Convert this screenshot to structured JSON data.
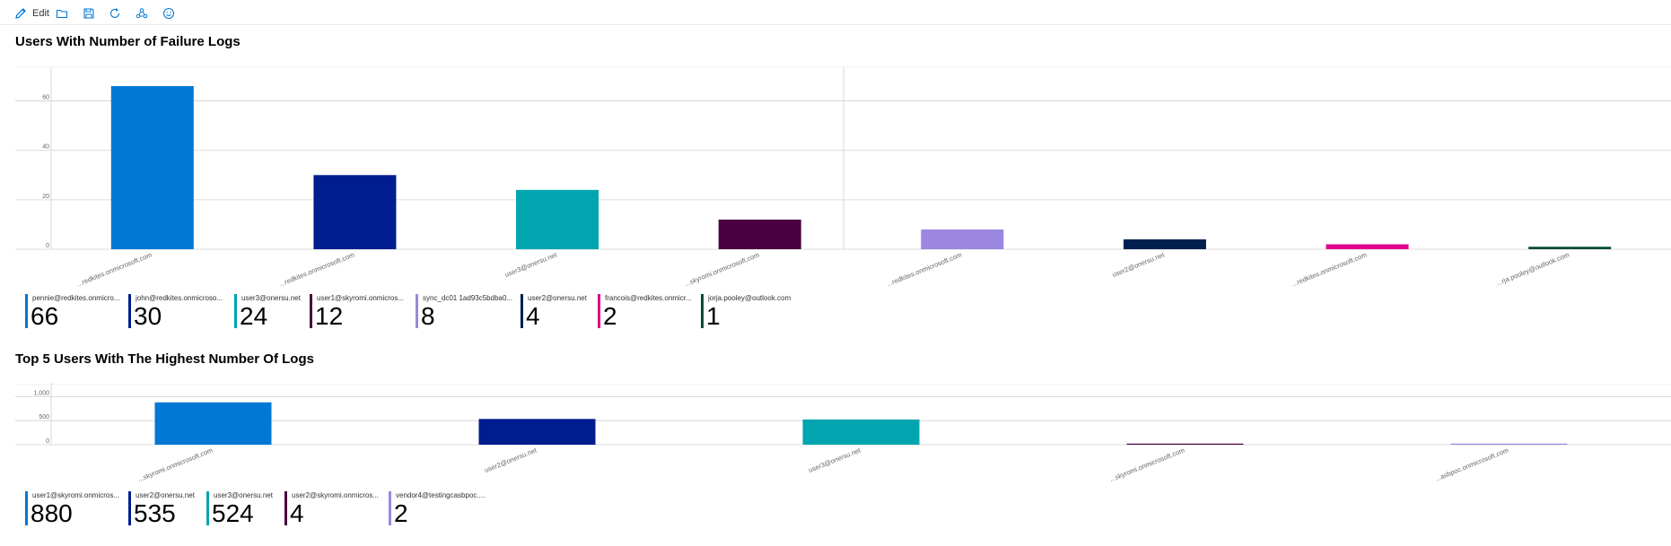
{
  "toolbar": {
    "edit_label": "Edit",
    "buttons": [
      {
        "icon": "pencil-icon",
        "label": "Edit"
      },
      {
        "icon": "folder-icon"
      },
      {
        "icon": "save-icon"
      },
      {
        "icon": "refresh-icon"
      },
      {
        "icon": "share-icon"
      },
      {
        "icon": "smiley-icon"
      }
    ]
  },
  "charts": {
    "failure": {
      "title": "Users With Number of Failure Logs"
    },
    "top": {
      "title": "Top 5 Users With The Highest Number Of Logs"
    }
  },
  "chart_data": [
    {
      "type": "bar",
      "title": "Users With Number of Failure Logs",
      "xlabel": "",
      "ylabel": "",
      "ylim": [
        0,
        70
      ],
      "yticks": [
        "0",
        "20",
        "40",
        "60"
      ],
      "grid": true,
      "legend_position": "bottom",
      "categories": [
        "pennie@redkites.onmicrosoft.com",
        "john@redkites.onmicrosoft.com",
        "user3@onersu.net",
        "user1@skyromi.onmicrosoft.com",
        "sync_dc01 1ad93c5bdba0@redkites.onmicrosoft.com",
        "user2@onersu.net",
        "francois@redkites.onmicrosoft.com",
        "jorja.pooley@outlook.com"
      ],
      "tick_labels": [
        "...redkites.onmicrosoft.com",
        "...redkites.onmicrosoft.com",
        "user3@onersu.net",
        "...skyromi.onmicrosoft.com",
        "...redkites.onmicrosoft.com",
        "user2@onersu.net",
        "...redkites.onmicrosoft.com",
        "...rja.pooley@outlook.com"
      ],
      "legend_labels": [
        "pennie@redkites.onmicro...",
        "john@redkites.onmicroso...",
        "user3@onersu.net",
        "user1@skyromi.onmicros...",
        "sync_dc01 1ad93c5bdba0...",
        "user2@onersu.net",
        "francois@redkites.onmicr...",
        "jorja.pooley@outlook.com"
      ],
      "values": [
        66,
        30,
        24,
        12,
        8,
        4,
        2,
        1
      ],
      "colors": [
        "#0078d4",
        "#001d8f",
        "#00a5af",
        "#4a0040",
        "#9b87df",
        "#002050",
        "#e3008c",
        "#004b3a"
      ]
    },
    {
      "type": "bar",
      "title": "Top 5 Users With The Highest Number Of Logs",
      "xlabel": "",
      "ylabel": "",
      "ylim": [
        0,
        1100
      ],
      "yticks": [
        "0",
        "500",
        "1,000"
      ],
      "grid": true,
      "legend_position": "bottom",
      "categories": [
        "user1@skyromi.onmicrosoft.com",
        "user2@onersu.net",
        "user3@onersu.net",
        "user2@skyromi.onmicrosoft.com",
        "vendor4@testingcasbpoc.onmicrosoft.com"
      ],
      "tick_labels": [
        "...skyromi.onmicrosoft.com",
        "user2@onersu.net",
        "user3@onersu.net",
        "...skyromi.onmicrosoft.com",
        "...asbpoc.onmicrosoft.com"
      ],
      "legend_labels": [
        "user1@skyromi.onmicros...",
        "user2@onersu.net",
        "user3@onersu.net",
        "user2@skyromi.onmicros...",
        "vendor4@testingcasbpoc...."
      ],
      "values": [
        880,
        535,
        524,
        4,
        2
      ],
      "colors": [
        "#0078d4",
        "#001d8f",
        "#00a5af",
        "#4a0040",
        "#9b87df"
      ]
    }
  ]
}
